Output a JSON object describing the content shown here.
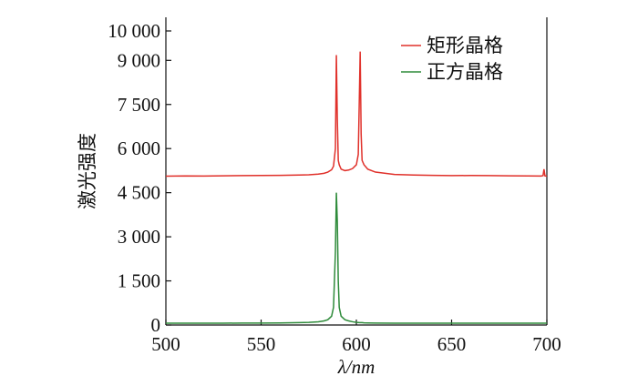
{
  "chart_data": {
    "type": "line",
    "xlabel": "λ/nm",
    "ylabel": "激光强度",
    "x": [
      500,
      510,
      520,
      530,
      540,
      550,
      560,
      570,
      575,
      580,
      583,
      585,
      587,
      588,
      589,
      589.5,
      590,
      590.5,
      591,
      592,
      594,
      596,
      598,
      600,
      601,
      601.5,
      602,
      602.5,
      603,
      604,
      606,
      610,
      620,
      630,
      640,
      650,
      660,
      670,
      680,
      690,
      697,
      698,
      698.5,
      699,
      700
    ],
    "series": [
      {
        "name": "矩形晶格",
        "color": "#e0302a",
        "values": [
          5060,
          5070,
          5065,
          5075,
          5080,
          5085,
          5090,
          5100,
          5110,
          5130,
          5160,
          5200,
          5280,
          5400,
          6000,
          9180,
          7000,
          5600,
          5450,
          5300,
          5250,
          5270,
          5320,
          5450,
          5800,
          7500,
          9300,
          6500,
          5600,
          5450,
          5300,
          5200,
          5120,
          5100,
          5090,
          5080,
          5085,
          5080,
          5075,
          5070,
          5065,
          5080,
          5300,
          5070,
          5060
        ]
      },
      {
        "name": "正方晶格",
        "color": "#2e8b3a",
        "values": [
          60,
          62,
          60,
          63,
          65,
          66,
          70,
          80,
          90,
          110,
          140,
          180,
          300,
          600,
          2500,
          4500,
          3500,
          1500,
          600,
          300,
          180,
          140,
          110,
          90,
          85,
          80,
          80,
          80,
          80,
          75,
          70,
          65,
          62,
          60,
          61,
          60,
          62,
          60,
          61,
          60,
          60,
          60,
          60,
          60,
          60
        ]
      }
    ],
    "xlim": [
      500,
      700
    ],
    "xticks": [
      500,
      550,
      600,
      650,
      700
    ],
    "ylim": [
      0,
      10000
    ],
    "yticks": [
      {
        "value": 0,
        "label": "0"
      },
      {
        "value": 1500,
        "label": "1 500"
      },
      {
        "value": 3000,
        "label": "3 000"
      },
      {
        "value": 4500,
        "label": "4 500"
      },
      {
        "value": 6000,
        "label": "6 000"
      },
      {
        "value": 7500,
        "label": "7 500"
      },
      {
        "value": 9000,
        "label": "9 000"
      },
      {
        "value": 10000,
        "label": "10 000"
      }
    ],
    "legend": "upper right"
  }
}
